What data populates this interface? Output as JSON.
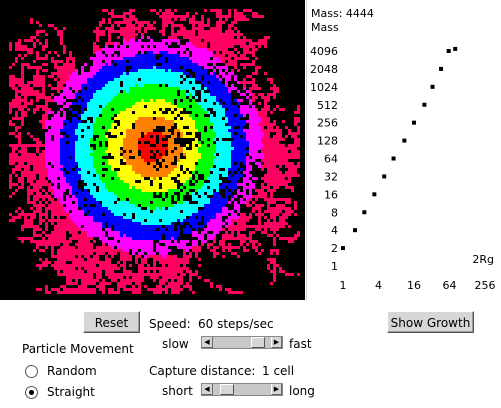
{
  "chart_data": {
    "type": "scatter",
    "title": "Mass: 4444",
    "ylabel": "Mass",
    "xlabel": "2Rg",
    "x_scale": "log2",
    "y_scale": "log2",
    "xticks": [
      "1",
      "4",
      "16",
      "64",
      "256"
    ],
    "yticks": [
      "1",
      "2",
      "4",
      "8",
      "16",
      "32",
      "64",
      "128",
      "256",
      "512",
      "1024",
      "2048",
      "4096"
    ],
    "xlim": [
      1,
      256
    ],
    "ylim": [
      1,
      4096
    ],
    "points": [
      {
        "x": 1.0,
        "y": 2
      },
      {
        "x": 1.6,
        "y": 4
      },
      {
        "x": 2.3,
        "y": 8
      },
      {
        "x": 3.4,
        "y": 16
      },
      {
        "x": 5.0,
        "y": 32
      },
      {
        "x": 7.2,
        "y": 64
      },
      {
        "x": 11,
        "y": 128
      },
      {
        "x": 16,
        "y": 256
      },
      {
        "x": 24,
        "y": 512
      },
      {
        "x": 33,
        "y": 1024
      },
      {
        "x": 46,
        "y": 2048
      },
      {
        "x": 62,
        "y": 4096
      },
      {
        "x": 80,
        "y": 4444
      }
    ],
    "marker_color": "#000000"
  },
  "aggregate": {
    "colors": [
      "#ff0000",
      "#ff8000",
      "#ffff00",
      "#00ff00",
      "#00ffff",
      "#0000ff",
      "#ff00ff",
      "#ff0060"
    ]
  },
  "controls": {
    "reset_label": "Reset",
    "show_growth_label": "Show Growth",
    "speed_label": "Speed:",
    "speed_value": "60 steps/sec",
    "speed_min_label": "slow",
    "speed_max_label": "fast",
    "speed_level": 0.86,
    "capture_label": "Capture distance:",
    "capture_value": "1 cell",
    "capture_min_label": "short",
    "capture_max_label": "long",
    "capture_level": 0.15,
    "particle_movement_label": "Particle Movement",
    "movement_options": [
      {
        "label": "Random",
        "selected": false
      },
      {
        "label": "Straight",
        "selected": true
      }
    ]
  }
}
